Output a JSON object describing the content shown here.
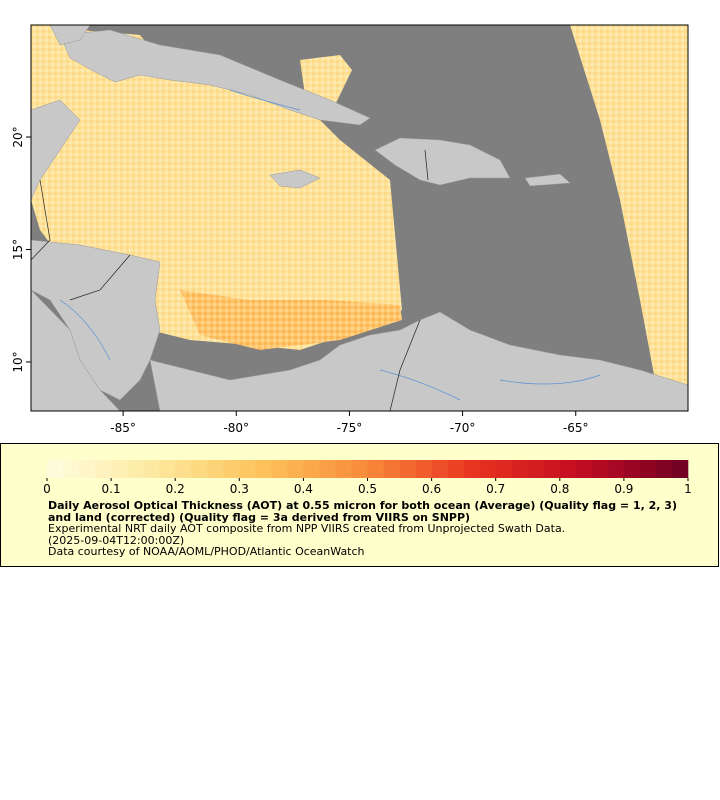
{
  "map": {
    "lonlim": [
      -89.07,
      -60.04
    ],
    "latlim": [
      7.82,
      24.98
    ],
    "lon_ticks": [
      {
        "value": -85,
        "label": "-85°"
      },
      {
        "value": -80,
        "label": "-80°"
      },
      {
        "value": -75,
        "label": "-75°"
      },
      {
        "value": -70,
        "label": "-70°"
      },
      {
        "value": -65,
        "label": "-65°"
      }
    ],
    "lat_ticks": [
      {
        "value": 10,
        "label": "10°"
      },
      {
        "value": 15,
        "label": "15°"
      },
      {
        "value": 20,
        "label": "20°"
      }
    ]
  },
  "colorbar": {
    "range": [
      0,
      1
    ],
    "ticks": [
      0,
      0.1,
      0.2,
      0.3,
      0.4,
      0.5,
      0.6,
      0.7,
      0.8,
      0.9,
      1
    ],
    "colormap": [
      "#fffee0",
      "#fde9a0",
      "#fdc35a",
      "#f98a3a",
      "#e8331f",
      "#c20c22",
      "#6e0024"
    ]
  },
  "legend": {
    "title": "Daily Aerosol Optical Thickness (AOT) at 0.55 micron for both ocean (Average) (Quality flag = 1, 2, 3) and land (corrected) (Quality flag = 3a derived from VIIRS on SNPP)",
    "summary": "Experimental NRT daily AOT composite from NPP VIIRS created from Unprojected Swath Data.",
    "time": "(2025-09-04T12:00:00Z)",
    "credit": "Data courtesy of NOAA/AOML/PHOD/Atlantic OceanWatch"
  }
}
